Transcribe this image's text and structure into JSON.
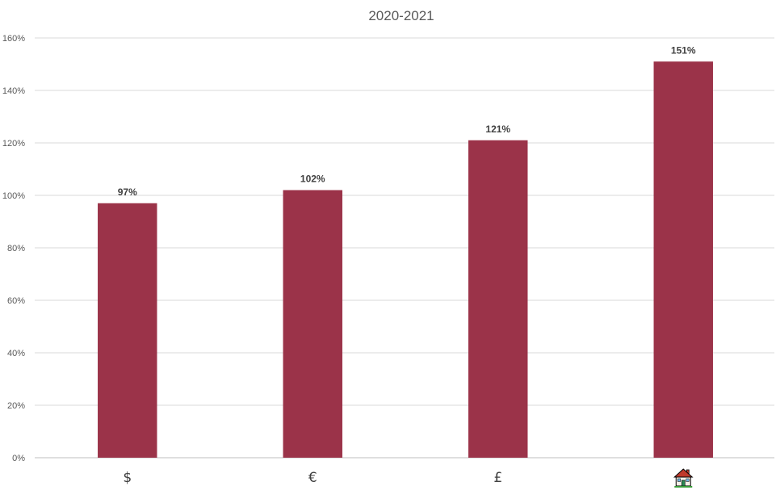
{
  "chart_data": {
    "type": "bar",
    "title": "2020-2021",
    "categories": [
      "$",
      "€",
      "£",
      "🏠"
    ],
    "values": [
      97,
      102,
      121,
      151
    ],
    "data_labels": [
      "97%",
      "102%",
      "121%",
      "151%"
    ],
    "ylim": [
      0,
      160
    ],
    "yticks": [
      0,
      20,
      40,
      60,
      80,
      100,
      120,
      140,
      160
    ],
    "ytick_labels": [
      "0%",
      "20%",
      "40%",
      "60%",
      "80%",
      "100%",
      "120%",
      "140%",
      "160%"
    ],
    "grid": true,
    "legend": "none",
    "bar_color": "#9b3349",
    "category_icons": [
      "",
      "",
      "",
      "house-icon"
    ]
  }
}
